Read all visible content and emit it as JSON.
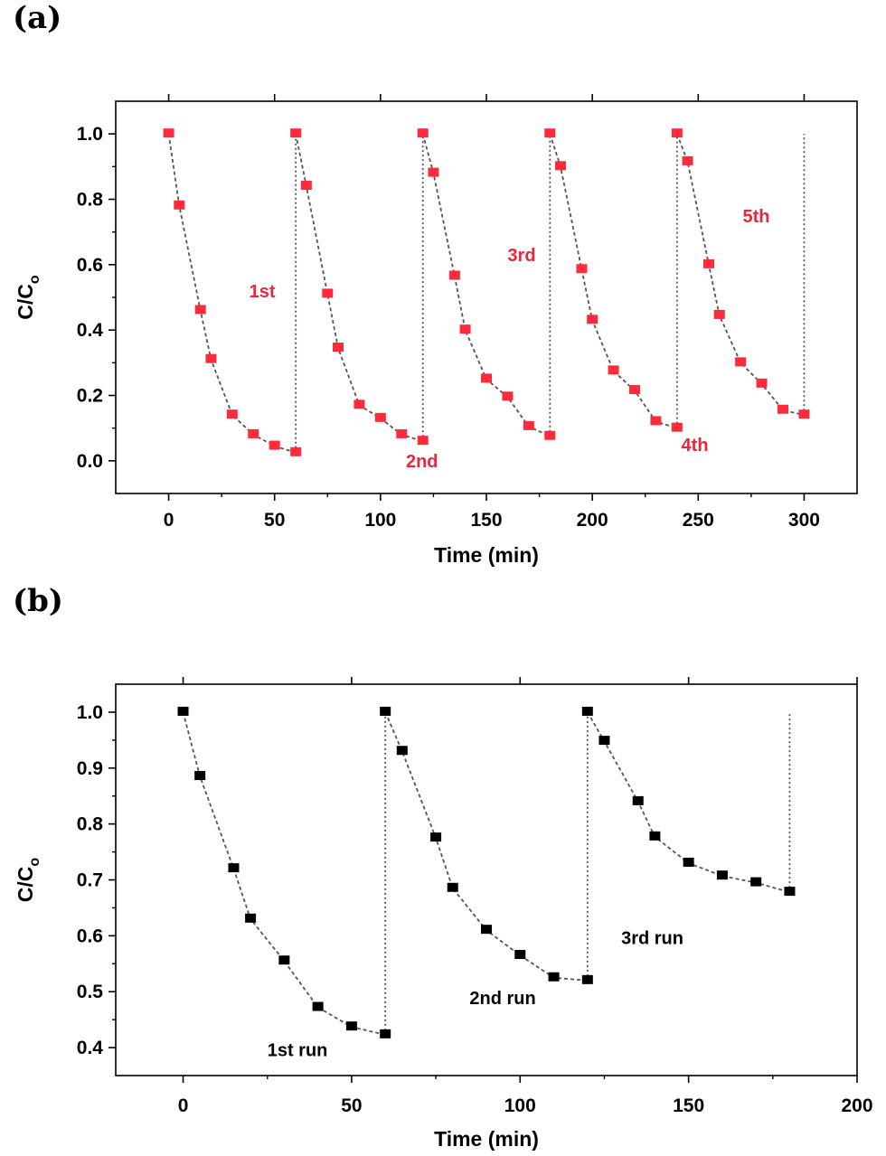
{
  "chart_data": [
    {
      "type": "line",
      "panel_label": "(a)",
      "xlabel": "Time (min)",
      "ylabel_main": "C/C",
      "ylabel_sub": "o",
      "xlim": [
        -25,
        325
      ],
      "ylim": [
        -0.1,
        1.1
      ],
      "xticks": [
        0,
        50,
        100,
        150,
        200,
        250,
        300
      ],
      "yticks": [
        0.0,
        0.2,
        0.4,
        0.6,
        0.8,
        1.0
      ],
      "ytick_labels": [
        "0.0",
        "0.2",
        "0.4",
        "0.6",
        "0.8",
        "1.0"
      ],
      "grid": false,
      "marker_color": "#ff2a3a",
      "line_color": "#555555",
      "series": [
        {
          "x": [
            0,
            5,
            15,
            20,
            30,
            40,
            50,
            60
          ],
          "y": [
            1.0,
            0.78,
            0.46,
            0.31,
            0.14,
            0.08,
            0.045,
            0.025
          ]
        },
        {
          "x": [
            60,
            65,
            75,
            80,
            90,
            100,
            110,
            120
          ],
          "y": [
            1.0,
            0.84,
            0.51,
            0.345,
            0.17,
            0.13,
            0.08,
            0.06
          ]
        },
        {
          "x": [
            120,
            125,
            135,
            140,
            150,
            160,
            170,
            180
          ],
          "y": [
            1.0,
            0.88,
            0.565,
            0.4,
            0.25,
            0.195,
            0.105,
            0.075
          ]
        },
        {
          "x": [
            180,
            185,
            195,
            200,
            210,
            220,
            230,
            240
          ],
          "y": [
            1.0,
            0.9,
            0.585,
            0.43,
            0.275,
            0.215,
            0.12,
            0.1
          ]
        },
        {
          "x": [
            240,
            245,
            255,
            260,
            270,
            280,
            290,
            300
          ],
          "y": [
            1.0,
            0.915,
            0.6,
            0.445,
            0.3,
            0.235,
            0.155,
            0.14
          ]
        }
      ],
      "resets": [
        {
          "x": 60,
          "from": 0.025,
          "to": 1.0
        },
        {
          "x": 120,
          "from": 0.06,
          "to": 1.0
        },
        {
          "x": 180,
          "from": 0.075,
          "to": 1.0
        },
        {
          "x": 240,
          "from": 0.1,
          "to": 1.0
        },
        {
          "x": 300,
          "from": 0.14,
          "to": 1.0
        }
      ],
      "annotations": [
        {
          "text": "1st",
          "x": 38,
          "y": 0.5
        },
        {
          "text": "2nd",
          "x": 112,
          "y": -0.02
        },
        {
          "text": "3rd",
          "x": 160,
          "y": 0.61
        },
        {
          "text": "4th",
          "x": 242,
          "y": 0.03
        },
        {
          "text": "5th",
          "x": 271,
          "y": 0.73
        }
      ]
    },
    {
      "type": "line",
      "panel_label": "(b)",
      "xlabel": "Time (min)",
      "ylabel_main": "C/C",
      "ylabel_sub": "o",
      "xlim": [
        -20,
        200
      ],
      "ylim": [
        0.35,
        1.05
      ],
      "xticks": [
        0,
        50,
        100,
        150,
        200
      ],
      "yticks": [
        0.4,
        0.5,
        0.6,
        0.7,
        0.8,
        0.9,
        1.0
      ],
      "ytick_labels": [
        "0.4",
        "0.5",
        "0.6",
        "0.7",
        "0.8",
        "0.9",
        "1.0"
      ],
      "grid": false,
      "marker_color": "#000000",
      "line_color": "#555555",
      "series": [
        {
          "x": [
            0,
            5,
            15,
            20,
            30,
            40,
            50,
            60
          ],
          "y": [
            1.0,
            0.885,
            0.72,
            0.63,
            0.555,
            0.472,
            0.437,
            0.423
          ]
        },
        {
          "x": [
            60,
            65,
            75,
            80,
            90,
            100,
            110,
            120
          ],
          "y": [
            1.0,
            0.93,
            0.775,
            0.685,
            0.61,
            0.565,
            0.525,
            0.52
          ]
        },
        {
          "x": [
            120,
            125,
            135,
            140,
            150,
            160,
            170,
            180
          ],
          "y": [
            1.0,
            0.948,
            0.84,
            0.777,
            0.73,
            0.707,
            0.695,
            0.678
          ]
        }
      ],
      "resets": [
        {
          "x": 60,
          "from": 0.423,
          "to": 1.0
        },
        {
          "x": 120,
          "from": 0.52,
          "to": 1.0
        },
        {
          "x": 180,
          "from": 0.678,
          "to": 1.0
        }
      ],
      "annotations": [
        {
          "text": "1st run",
          "x": 25,
          "y": 0.385
        },
        {
          "text": "2nd run",
          "x": 85,
          "y": 0.478
        },
        {
          "text": "3rd run",
          "x": 130,
          "y": 0.585
        }
      ]
    }
  ]
}
